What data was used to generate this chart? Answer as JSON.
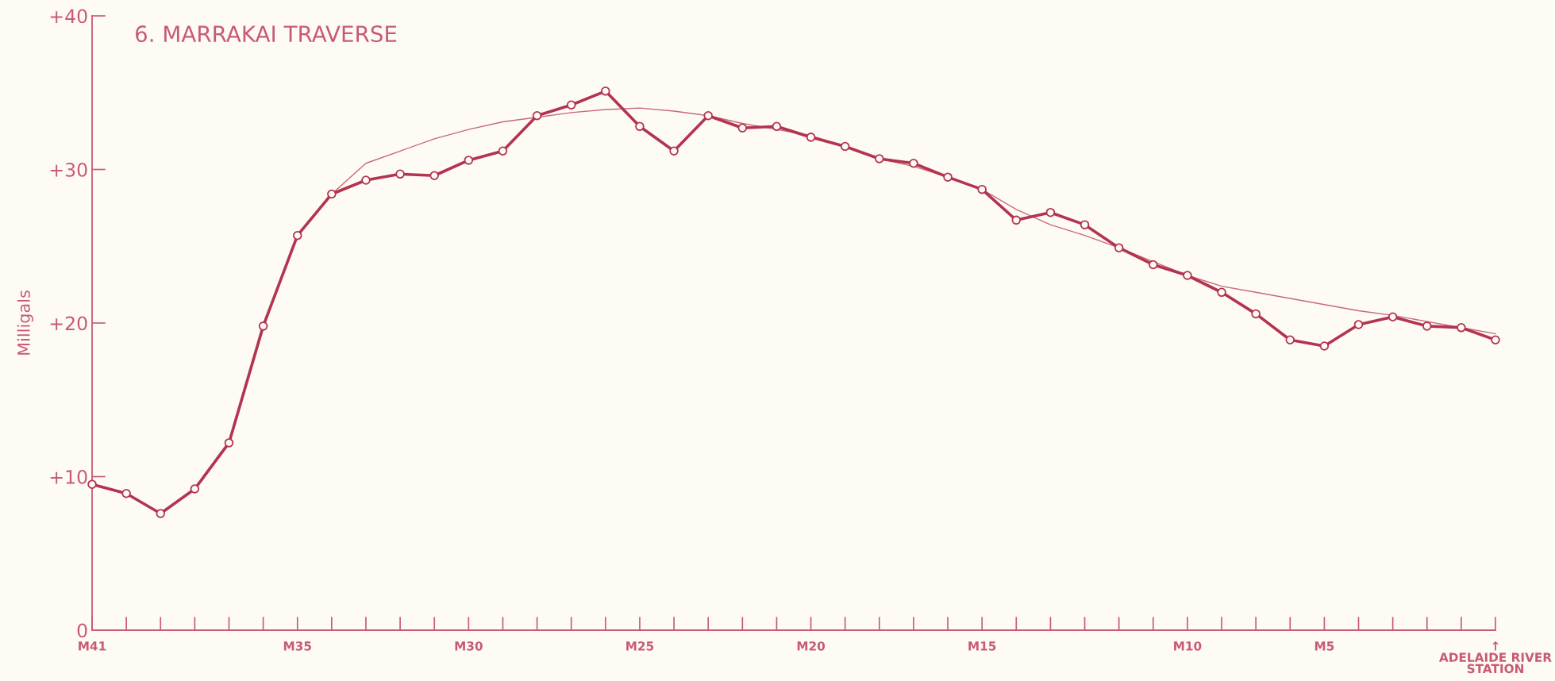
{
  "chart_data": {
    "type": "line",
    "title": "6. MARRAKAI TRAVERSE",
    "ylabel": "Milligals",
    "categories": [
      "M41",
      null,
      null,
      null,
      null,
      null,
      "M35",
      null,
      null,
      null,
      null,
      "M30",
      null,
      null,
      null,
      null,
      "M25",
      null,
      null,
      null,
      null,
      "M20",
      null,
      null,
      null,
      null,
      "M15",
      null,
      null,
      null,
      null,
      null,
      "M10",
      null,
      null,
      null,
      "M5",
      null,
      null,
      null,
      null,
      "↑\nADELAIDE RIVER\nSTATION"
    ],
    "ylim": [
      0,
      40
    ],
    "yticks": [
      {
        "value": 0,
        "label": "0"
      },
      {
        "value": 10,
        "label": "+10"
      },
      {
        "value": 20,
        "label": "+20"
      },
      {
        "value": 30,
        "label": "+30"
      },
      {
        "value": 40,
        "label": "+40"
      }
    ],
    "grid": false,
    "series": [
      {
        "color": "#b2344f",
        "marker": "circle",
        "line_style": "solid",
        "values": [
          9.5,
          8.9,
          7.6,
          9.2,
          12.2,
          19.8,
          25.7,
          28.4,
          29.3,
          29.7,
          29.6,
          30.6,
          31.2,
          33.5,
          34.2,
          35.1,
          32.8,
          31.2,
          33.5,
          32.7,
          32.8,
          32.1,
          31.5,
          30.7,
          30.4,
          29.5,
          28.7,
          26.7,
          27.2,
          26.4,
          24.9,
          23.8,
          23.1,
          22.0,
          20.6,
          18.9,
          18.5,
          19.9,
          20.4,
          19.8,
          19.7,
          18.9
        ]
      },
      {
        "color": "#c9687c",
        "marker": "none",
        "line_style": "solid",
        "values": [
          null,
          null,
          null,
          null,
          null,
          null,
          null,
          28.4,
          30.4,
          31.2,
          32.0,
          32.6,
          33.1,
          33.4,
          33.7,
          33.9,
          34.0,
          33.8,
          33.5,
          33.0,
          32.6,
          32.2,
          31.5,
          30.7,
          30.2,
          29.5,
          28.7,
          27.4,
          26.4,
          25.7,
          24.9,
          24.0,
          23.1,
          22.4,
          22.0,
          21.6,
          21.2,
          20.8,
          20.5,
          20.1,
          19.7,
          19.3
        ]
      }
    ]
  }
}
